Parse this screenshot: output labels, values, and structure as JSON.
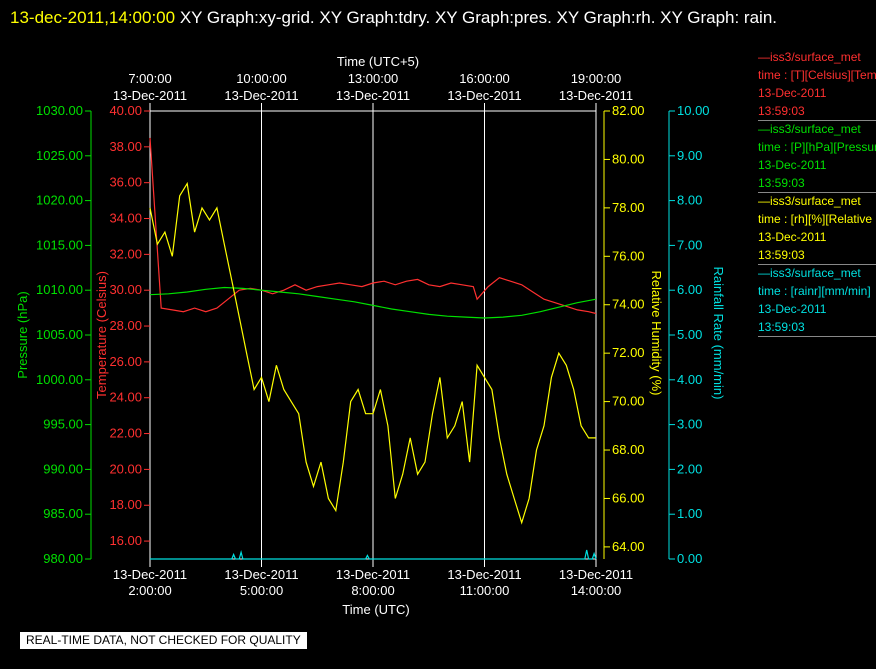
{
  "header": {
    "date": "13-dec-2011,14:00:00",
    "titles": " XY Graph:xy-grid.  XY Graph:tdry.  XY Graph:pres.  XY Graph:rh.  XY Graph: rain."
  },
  "footer": "REAL-TIME DATA, NOT CHECKED FOR QUALITY",
  "legend": [
    {
      "name": "—iss3/surface_met",
      "line2": "time : [T][Celsius][Temperature",
      "date": "13-Dec-2011",
      "time": "13:59:03",
      "color": "#ff3030"
    },
    {
      "name": "—iss3/surface_met",
      "line2": "time : [P][hPa][Pressure",
      "date": "13-Dec-2011",
      "time": "13:59:03",
      "color": "#00e000"
    },
    {
      "name": "—iss3/surface_met",
      "line2": "time : [rh][%][Relative",
      "date": "13-Dec-2011",
      "time": "13:59:03",
      "color": "#ffff00"
    },
    {
      "name": "—iss3/surface_met",
      "line2": "time : [rainr][mm/min]",
      "date": "13-Dec-2011",
      "time": "13:59:03",
      "color": "#00e0e0"
    }
  ],
  "colors": {
    "temperature": "#ff3030",
    "pressure": "#00e000",
    "humidity": "#ffff00",
    "rain": "#00e0e0",
    "grid": "#ffffff",
    "text": "#ffffff"
  },
  "chart_data": {
    "type": "line",
    "x_bottom_label": "Time (UTC)",
    "x_top_label": "Time (UTC+5)",
    "x_range_utc": [
      "13-Dec-2011 02:00:00",
      "13-Dec-2011 14:00:00"
    ],
    "x_bottom_ticks": [
      {
        "date": "13-Dec-2011",
        "time": "2:00:00"
      },
      {
        "date": "13-Dec-2011",
        "time": "5:00:00"
      },
      {
        "date": "13-Dec-2011",
        "time": "8:00:00"
      },
      {
        "date": "13-Dec-2011",
        "time": "11:00:00"
      },
      {
        "date": "13-Dec-2011",
        "time": "14:00:00"
      }
    ],
    "x_top_ticks": [
      {
        "time": "7:00:00",
        "date": "13-Dec-2011"
      },
      {
        "time": "10:00:00",
        "date": "13-Dec-2011"
      },
      {
        "time": "13:00:00",
        "date": "13-Dec-2011"
      },
      {
        "time": "16:00:00",
        "date": "13-Dec-2011"
      },
      {
        "time": "19:00:00",
        "date": "13-Dec-2011"
      }
    ],
    "grid": "vertical",
    "axes": {
      "pressure": {
        "label": "Pressure (hPa)",
        "range": [
          980,
          1030
        ],
        "ticks": [
          "980.00",
          "985.00",
          "990.00",
          "995.00",
          "1000.00",
          "1005.00",
          "1010.00",
          "1015.00",
          "1020.00",
          "1025.00",
          "1030.00"
        ]
      },
      "temperature": {
        "label": "Temperature (Celsius)",
        "range": [
          15,
          40
        ],
        "ticks": [
          "16.00",
          "18.00",
          "20.00",
          "22.00",
          "24.00",
          "26.00",
          "28.00",
          "30.00",
          "32.00",
          "34.00",
          "36.00",
          "38.00",
          "40.00"
        ]
      },
      "humidity": {
        "label": "Relative Humidity (%)",
        "range": [
          63.5,
          82
        ],
        "ticks": [
          "64.00",
          "66.00",
          "68.00",
          "70.00",
          "72.00",
          "74.00",
          "76.00",
          "78.00",
          "80.00",
          "82.00"
        ]
      },
      "rain": {
        "label": "Rainfall Rate (mm/min)",
        "range": [
          0,
          10
        ],
        "ticks": [
          "0.00",
          "1.00",
          "2.00",
          "3.00",
          "4.00",
          "5.00",
          "6.00",
          "7.00",
          "8.00",
          "9.00",
          "10.00"
        ]
      }
    },
    "series": [
      {
        "key": "temperature",
        "axis": "temperature",
        "x": [
          2.0,
          2.3,
          2.6,
          2.9,
          3.2,
          3.5,
          3.8,
          4.1,
          4.4,
          4.7,
          5.0,
          5.3,
          5.6,
          5.9,
          6.2,
          6.5,
          6.8,
          7.1,
          7.4,
          7.7,
          8.0,
          8.3,
          8.6,
          8.9,
          9.2,
          9.5,
          9.8,
          10.1,
          10.4,
          10.7,
          10.8,
          11.1,
          11.4,
          11.7,
          12.0,
          12.3,
          12.6,
          12.9,
          13.2,
          13.5,
          13.8,
          14.0
        ],
        "y": [
          38.5,
          29.0,
          28.9,
          28.8,
          29.0,
          28.8,
          29.0,
          29.5,
          30.0,
          30.1,
          30.0,
          29.8,
          30.0,
          30.3,
          30.0,
          30.2,
          30.3,
          30.4,
          30.3,
          30.2,
          30.4,
          30.5,
          30.3,
          30.5,
          30.6,
          30.3,
          30.2,
          30.4,
          30.3,
          30.2,
          29.5,
          30.2,
          30.7,
          30.5,
          30.3,
          29.9,
          29.5,
          29.3,
          29.1,
          28.9,
          28.8,
          28.7
        ]
      },
      {
        "key": "pressure",
        "axis": "pressure",
        "x": [
          2.0,
          2.5,
          3.0,
          3.5,
          4.0,
          4.5,
          5.0,
          5.5,
          6.0,
          6.5,
          7.0,
          7.5,
          8.0,
          8.5,
          9.0,
          9.5,
          10.0,
          10.5,
          11.0,
          11.5,
          12.0,
          12.5,
          13.0,
          13.5,
          14.0
        ],
        "y": [
          1009.5,
          1009.6,
          1009.8,
          1010.1,
          1010.3,
          1010.2,
          1010.0,
          1009.8,
          1009.6,
          1009.3,
          1009.0,
          1008.7,
          1008.3,
          1007.9,
          1007.6,
          1007.3,
          1007.1,
          1007.0,
          1006.9,
          1007.0,
          1007.2,
          1007.6,
          1008.1,
          1008.6,
          1009.0
        ]
      },
      {
        "key": "humidity",
        "axis": "humidity",
        "x": [
          2.0,
          2.2,
          2.4,
          2.6,
          2.8,
          3.0,
          3.2,
          3.4,
          3.6,
          3.8,
          4.0,
          4.2,
          4.4,
          4.6,
          4.8,
          5.0,
          5.2,
          5.4,
          5.6,
          5.8,
          6.0,
          6.2,
          6.4,
          6.6,
          6.8,
          7.0,
          7.2,
          7.4,
          7.6,
          7.8,
          8.0,
          8.2,
          8.4,
          8.6,
          8.8,
          9.0,
          9.2,
          9.4,
          9.6,
          9.8,
          10.0,
          10.2,
          10.4,
          10.6,
          10.8,
          11.0,
          11.2,
          11.4,
          11.6,
          11.8,
          12.0,
          12.2,
          12.4,
          12.6,
          12.8,
          13.0,
          13.2,
          13.4,
          13.6,
          13.8,
          14.0
        ],
        "y": [
          78.0,
          76.5,
          77.0,
          76.0,
          78.5,
          79.0,
          77.0,
          78.0,
          77.5,
          78.0,
          76.5,
          75.0,
          73.5,
          72.0,
          70.5,
          71.0,
          70.0,
          71.5,
          70.5,
          70.0,
          69.5,
          67.5,
          66.5,
          67.5,
          66.0,
          65.5,
          67.5,
          70.0,
          70.5,
          69.5,
          69.5,
          70.5,
          69.0,
          66.0,
          67.0,
          68.5,
          67.0,
          67.5,
          69.5,
          71.0,
          68.5,
          69.0,
          70.0,
          67.5,
          71.5,
          71.0,
          70.5,
          68.5,
          67.0,
          66.0,
          65.0,
          66.0,
          68.0,
          69.0,
          71.0,
          72.0,
          71.5,
          70.5,
          69.0,
          68.5,
          68.5
        ]
      },
      {
        "key": "rain",
        "axis": "rain",
        "x": [
          2.0,
          4.2,
          4.25,
          4.3,
          4.4,
          4.45,
          4.5,
          7.8,
          7.85,
          7.9,
          13.7,
          13.75,
          13.8,
          13.9,
          13.95,
          14.0
        ],
        "y": [
          0.0,
          0.0,
          0.1,
          0.0,
          0.0,
          0.15,
          0.0,
          0.0,
          0.08,
          0.0,
          0.0,
          0.2,
          0.0,
          0.0,
          0.12,
          0.0
        ]
      }
    ]
  }
}
